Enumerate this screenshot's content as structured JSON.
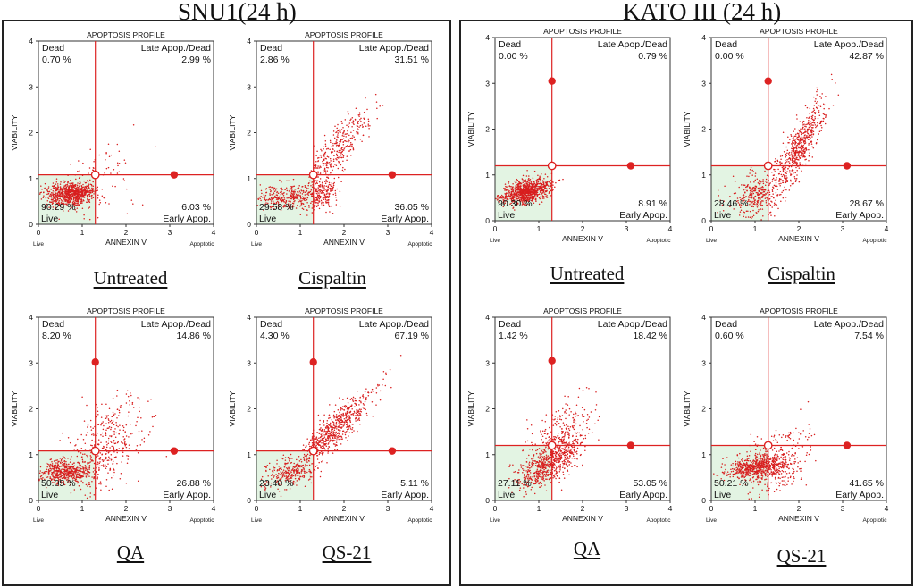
{
  "figure": {
    "profile_title": "APOPTOSIS PROFILE",
    "x_axis_label": "ANNEXIN V",
    "y_axis_label": "VIABILITY",
    "x_left_note": "Live",
    "x_right_note": "Apoptotic",
    "quadrant_names": {
      "dead": "Dead",
      "late": "Late Apop./Dead",
      "live": "Live",
      "early": "Early Apop."
    },
    "colors": {
      "dots": "#d81e1e",
      "gate": "#dd2222",
      "live_fill": "#e3f4e3",
      "axis": "#333333"
    }
  },
  "panels": [
    {
      "title": "SNU1(24 h)",
      "conditions": [
        "Untreated",
        "Cispaltin",
        "QA",
        "QS-21"
      ]
    },
    {
      "title": "KATO III (24 h)",
      "conditions": [
        "Untreated",
        "Cispaltin",
        "QA",
        "QS-21"
      ]
    }
  ],
  "chart_data": [
    {
      "type": "scatter",
      "panel": "SNU1(24 h)",
      "condition": "Untreated",
      "title": "APOPTOSIS PROFILE",
      "xlabel": "ANNEXIN V",
      "ylabel": "VIABILITY",
      "xlim": [
        0,
        4
      ],
      "ylim": [
        0,
        4
      ],
      "xticks": [
        0,
        1,
        2,
        3,
        4
      ],
      "yticks": [
        0,
        1,
        2,
        3,
        4
      ],
      "gate": {
        "x": 1.3,
        "y": 1.08
      },
      "quadrants": {
        "dead": "0.70 %",
        "late": "2.99 %",
        "live": "90.29 %",
        "early": "6.03 %"
      }
    },
    {
      "type": "scatter",
      "panel": "SNU1(24 h)",
      "condition": "Cispaltin",
      "title": "APOPTOSIS PROFILE",
      "xlabel": "ANNEXIN V",
      "ylabel": "VIABILITY",
      "xlim": [
        0,
        4
      ],
      "ylim": [
        0,
        4
      ],
      "xticks": [
        0,
        1,
        2,
        3,
        4
      ],
      "yticks": [
        0,
        1,
        2,
        3,
        4
      ],
      "gate": {
        "x": 1.3,
        "y": 1.08
      },
      "quadrants": {
        "dead": "2.86 %",
        "late": "31.51 %",
        "live": "29.58 %",
        "early": "36.05 %"
      }
    },
    {
      "type": "scatter",
      "panel": "SNU1(24 h)",
      "condition": "QA",
      "title": "APOPTOSIS PROFILE",
      "xlabel": "ANNEXIN V",
      "ylabel": "VIABILITY",
      "xlim": [
        0,
        4
      ],
      "ylim": [
        0,
        4
      ],
      "xticks": [
        0,
        1,
        2,
        3,
        4
      ],
      "yticks": [
        0,
        1,
        2,
        3,
        4
      ],
      "gate": {
        "x": 1.3,
        "y": 1.08,
        "dead_marker_y": 3.02
      },
      "quadrants": {
        "dead": "8.20 %",
        "late": "14.86 %",
        "live": "50.05 %",
        "early": "26.88 %"
      }
    },
    {
      "type": "scatter",
      "panel": "SNU1(24 h)",
      "condition": "QS-21",
      "title": "APOPTOSIS PROFILE",
      "xlabel": "ANNEXIN V",
      "ylabel": "VIABILITY",
      "xlim": [
        0,
        4
      ],
      "ylim": [
        0,
        4
      ],
      "xticks": [
        0,
        1,
        2,
        3,
        4
      ],
      "yticks": [
        0,
        1,
        2,
        3,
        4
      ],
      "gate": {
        "x": 1.3,
        "y": 1.08,
        "dead_marker_y": 3.02
      },
      "quadrants": {
        "dead": "4.30 %",
        "late": "67.19 %",
        "live": "23.40 %",
        "early": "5.11 %"
      }
    },
    {
      "type": "scatter",
      "panel": "KATO III (24 h)",
      "condition": "Untreated",
      "title": "APOPTOSIS PROFILE",
      "xlabel": "ANNEXIN V",
      "ylabel": "VIABILITY",
      "xlim": [
        0,
        4
      ],
      "ylim": [
        0,
        4
      ],
      "xticks": [
        0,
        1,
        2,
        3,
        4
      ],
      "yticks": [
        0,
        1,
        2,
        3,
        4
      ],
      "gate": {
        "x": 1.3,
        "y": 1.2,
        "dead_marker_y": 3.05
      },
      "quadrants": {
        "dead": "0.00 %",
        "late": "0.79 %",
        "live": "90.30 %",
        "early": "8.91 %"
      }
    },
    {
      "type": "scatter",
      "panel": "KATO III (24 h)",
      "condition": "Cispaltin",
      "title": "APOPTOSIS PROFILE",
      "xlabel": "ANNEXIN V",
      "ylabel": "VIABILITY",
      "xlim": [
        0,
        4
      ],
      "ylim": [
        0,
        4
      ],
      "xticks": [
        0,
        1,
        2,
        3,
        4
      ],
      "yticks": [
        0,
        1,
        2,
        3,
        4
      ],
      "gate": {
        "x": 1.3,
        "y": 1.2,
        "dead_marker_y": 3.05
      },
      "quadrants": {
        "dead": "0.00 %",
        "late": "42.87 %",
        "live": "28.46 %",
        "early": "28.67 %"
      }
    },
    {
      "type": "scatter",
      "panel": "KATO III (24 h)",
      "condition": "QA",
      "title": "APOPTOSIS PROFILE",
      "xlabel": "ANNEXIN V",
      "ylabel": "VIABILITY",
      "xlim": [
        0,
        4
      ],
      "ylim": [
        0,
        4
      ],
      "xticks": [
        0,
        1,
        2,
        3,
        4
      ],
      "yticks": [
        0,
        1,
        2,
        3,
        4
      ],
      "gate": {
        "x": 1.3,
        "y": 1.2,
        "dead_marker_y": 3.05
      },
      "quadrants": {
        "dead": "1.42 %",
        "late": "18.42 %",
        "live": "27.11 %",
        "early": "53.05 %"
      }
    },
    {
      "type": "scatter",
      "panel": "KATO III (24 h)",
      "condition": "QS-21",
      "title": "APOPTOSIS PROFILE",
      "xlabel": "ANNEXIN V",
      "ylabel": "VIABILITY",
      "xlim": [
        0,
        4
      ],
      "ylim": [
        0,
        4
      ],
      "xticks": [
        0,
        1,
        2,
        3,
        4
      ],
      "yticks": [
        0,
        1,
        2,
        3,
        4
      ],
      "gate": {
        "x": 1.3,
        "y": 1.2
      },
      "quadrants": {
        "dead": "0.60 %",
        "late": "7.54 %",
        "live": "50.21 %",
        "early": "41.65 %"
      }
    }
  ]
}
